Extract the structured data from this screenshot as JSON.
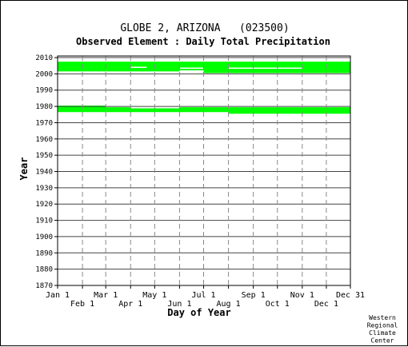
{
  "chart_data": {
    "type": "heatmap",
    "title": "GLOBE 2, ARIZONA   (023500)",
    "subtitle": "Observed Element : Daily Total Precipitation",
    "xlabel": "Day of Year",
    "ylabel": "Year",
    "credit": [
      "Western",
      "Regional",
      "Climate",
      "Center"
    ],
    "xlim": [
      1,
      366
    ],
    "ylim": [
      1870,
      2011
    ],
    "y_ticks": [
      1870,
      1880,
      1890,
      1900,
      1910,
      1920,
      1930,
      1940,
      1950,
      1960,
      1970,
      1980,
      1990,
      2000,
      2010
    ],
    "x_ticks": [
      {
        "label": "Jan 1",
        "day": 1,
        "row": 0
      },
      {
        "label": "Feb 1",
        "day": 32,
        "row": 1
      },
      {
        "label": "Mar 1",
        "day": 61,
        "row": 0
      },
      {
        "label": "Apr 1",
        "day": 92,
        "row": 1
      },
      {
        "label": "May 1",
        "day": 122,
        "row": 0
      },
      {
        "label": "Jun 1",
        "day": 153,
        "row": 1
      },
      {
        "label": "Jul 1",
        "day": 183,
        "row": 0
      },
      {
        "label": "Aug 1",
        "day": 214,
        "row": 1
      },
      {
        "label": "Sep 1",
        "day": 245,
        "row": 0
      },
      {
        "label": "Oct 1",
        "day": 275,
        "row": 1
      },
      {
        "label": "Nov 1",
        "day": 306,
        "row": 0
      },
      {
        "label": "Dec 1",
        "day": 336,
        "row": 1
      },
      {
        "label": "Dec 31",
        "day": 366,
        "row": 0
      }
    ],
    "grid": true,
    "data_color": "#00ff00",
    "series": [
      {
        "day_start": 1,
        "day_end": 61,
        "year_start": 1976.5,
        "year_end": 1980.5
      },
      {
        "day_start": 61,
        "day_end": 214,
        "year_start": 1976.5,
        "year_end": 1979.5
      },
      {
        "day_start": 214,
        "day_end": 366,
        "year_start": 1975.5,
        "year_end": 1979.5
      },
      {
        "day_start": 1,
        "day_end": 61,
        "year_start": 2001.5,
        "year_end": 2007.5
      },
      {
        "day_start": 61,
        "day_end": 183,
        "year_start": 2001.5,
        "year_end": 2007.5
      },
      {
        "day_start": 183,
        "day_end": 366,
        "year_start": 2000.5,
        "year_end": 2007.5
      }
    ],
    "gaps": [
      {
        "day_start": 92,
        "day_end": 153,
        "year": 1979.2
      },
      {
        "day_start": 92,
        "day_end": 112,
        "year": 2004
      },
      {
        "day_start": 153,
        "day_end": 183,
        "year": 2003.5
      },
      {
        "day_start": 214,
        "day_end": 306,
        "year": 2003.5
      },
      {
        "day_start": 153,
        "day_end": 183,
        "year": 2001.8
      }
    ]
  }
}
